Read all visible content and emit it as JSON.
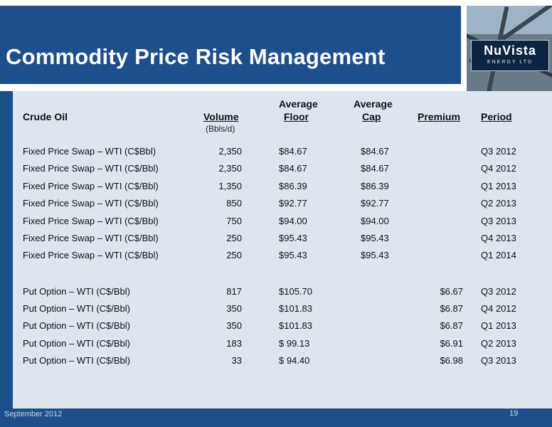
{
  "title": "Commodity Price Risk Management",
  "logo": {
    "name": "NuVista",
    "sub": "ENERGY LTD"
  },
  "table": {
    "headers": {
      "category": "Crude Oil",
      "volume": "Volume",
      "volume_unit": "(Bbls/d)",
      "floor_top": "Average",
      "floor": "Floor",
      "cap_top": "Average",
      "cap": "Cap",
      "premium": "Premium",
      "period": "Period"
    },
    "swaps": [
      {
        "name": "Fixed Price Swap – WTI (C$Bbl)",
        "volume": "2,350",
        "floor": "$84.67",
        "cap": "$84.67",
        "premium": "",
        "period": "Q3 2012"
      },
      {
        "name": "Fixed Price Swap – WTI (C$/Bbl)",
        "volume": "2,350",
        "floor": "$84.67",
        "cap": "$84.67",
        "premium": "",
        "period": "Q4 2012"
      },
      {
        "name": "Fixed Price Swap – WTI (C$/Bbl)",
        "volume": "1,350",
        "floor": "$86.39",
        "cap": "$86.39",
        "premium": "",
        "period": "Q1 2013"
      },
      {
        "name": "Fixed Price Swap – WTI (C$/Bbl)",
        "volume": "850",
        "floor": "$92.77",
        "cap": "$92.77",
        "premium": "",
        "period": "Q2 2013"
      },
      {
        "name": "Fixed Price Swap – WTI (C$/Bbl)",
        "volume": "750",
        "floor": "$94.00",
        "cap": "$94.00",
        "premium": "",
        "period": "Q3 2013"
      },
      {
        "name": "Fixed Price Swap – WTI (C$/Bbl)",
        "volume": "250",
        "floor": "$95.43",
        "cap": "$95.43",
        "premium": "",
        "period": "Q4 2013"
      },
      {
        "name": "Fixed Price Swap – WTI (C$/Bbl)",
        "volume": "250",
        "floor": "$95.43",
        "cap": "$95.43",
        "premium": "",
        "period": "Q1 2014"
      }
    ],
    "puts": [
      {
        "name": "Put Option – WTI (C$/Bbl)",
        "volume": "817",
        "floor": "$105.70",
        "cap": "",
        "premium": "$6.67",
        "period": "Q3 2012"
      },
      {
        "name": "Put Option – WTI (C$/Bbl)",
        "volume": "350",
        "floor": "$101.83",
        "cap": "",
        "premium": "$6.87",
        "period": "Q4 2012"
      },
      {
        "name": "Put Option – WTI (C$/Bbl)",
        "volume": "350",
        "floor": "$101.83",
        "cap": "",
        "premium": "$6.87",
        "period": "Q1 2013"
      },
      {
        "name": "Put Option – WTI (C$/Bbl)",
        "volume": "183",
        "floor": "$ 99.13",
        "cap": "",
        "premium": "$6.91",
        "period": "Q2 2013"
      },
      {
        "name": "Put Option – WTI (C$/Bbl)",
        "volume": "33",
        "floor": "$ 94.40",
        "cap": "",
        "premium": "$6.98",
        "period": "Q3 2013"
      }
    ]
  },
  "footer": {
    "date": "September 2012",
    "page": "19"
  },
  "colors": {
    "brand_blue": "#1c4f8c",
    "panel": "#dde6ef"
  }
}
